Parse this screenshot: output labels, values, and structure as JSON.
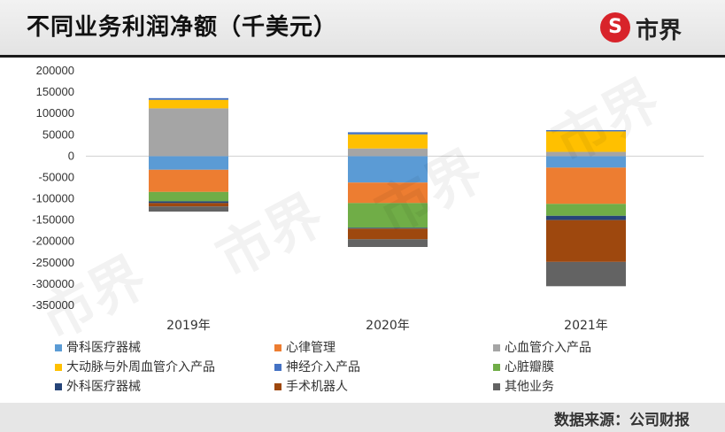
{
  "title": "不同业务利润净额（千美元）",
  "logo": {
    "glyph": "S",
    "text": "市界"
  },
  "watermark_text": "市界",
  "source": "数据来源：公司财报",
  "chart_data": {
    "type": "bar",
    "stacked": true,
    "title": "不同业务利润净额（千美元）",
    "categories": [
      "2019年",
      "2020年",
      "2021年"
    ],
    "ylim": [
      -350000,
      200000
    ],
    "yticks": [
      200000,
      150000,
      100000,
      50000,
      0,
      -50000,
      -100000,
      -150000,
      -200000,
      -250000,
      -300000,
      -350000
    ],
    "grid": false,
    "legend_position": "bottom",
    "series": [
      {
        "name": "骨科医疗器械",
        "color": "#5b9bd5",
        "values": [
          -32000,
          -62000,
          -27000
        ]
      },
      {
        "name": "心律管理",
        "color": "#ed7d31",
        "values": [
          -52000,
          -48000,
          -85000
        ]
      },
      {
        "name": "心血管介入产品",
        "color": "#a5a5a5",
        "values": [
          112000,
          18000,
          10000
        ]
      },
      {
        "name": "大动脉与外周血管介入产品",
        "color": "#ffc000",
        "values": [
          20000,
          33000,
          48000
        ]
      },
      {
        "name": "神经介入产品",
        "color": "#4472c4",
        "values": [
          4000,
          5000,
          3000
        ]
      },
      {
        "name": "心脏瓣膜",
        "color": "#70ad47",
        "values": [
          -22000,
          -58000,
          -28000
        ]
      },
      {
        "name": "外科医疗器械",
        "color": "#264478",
        "values": [
          -4000,
          -2000,
          -10000
        ]
      },
      {
        "name": "手术机器人",
        "color": "#9e480e",
        "values": [
          -8000,
          -25000,
          -98000
        ]
      },
      {
        "name": "其他业务",
        "color": "#636363",
        "values": [
          -12000,
          -18000,
          -57000
        ]
      }
    ]
  }
}
